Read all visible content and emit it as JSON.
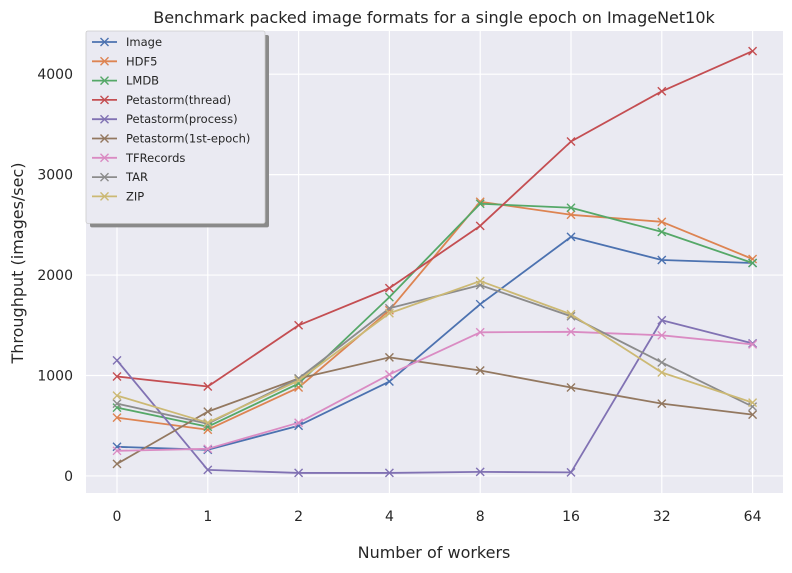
{
  "chart_data": {
    "type": "line",
    "title": "Benchmark packed image formats for a single epoch on ImageNet10k",
    "xlabel": "Number of workers",
    "ylabel": "Throughput (images/sec)",
    "categories": [
      "0",
      "1",
      "2",
      "4",
      "8",
      "16",
      "32",
      "64"
    ],
    "ylim": [
      -170,
      4430
    ],
    "yticks": [
      0,
      1000,
      2000,
      3000,
      4000
    ],
    "grid": true,
    "legend_position": "top-left",
    "marker": "x",
    "series": [
      {
        "name": "Image",
        "color": "#4c72b0",
        "values": [
          290,
          260,
          500,
          940,
          1710,
          2380,
          2150,
          2120
        ]
      },
      {
        "name": "HDF5",
        "color": "#dd8452",
        "values": [
          580,
          460,
          880,
          1650,
          2730,
          2600,
          2530,
          2160
        ]
      },
      {
        "name": "LMDB",
        "color": "#55a868",
        "values": [
          680,
          490,
          920,
          1780,
          2710,
          2670,
          2430,
          2120
        ]
      },
      {
        "name": "Petastorm(thread)",
        "color": "#c44e52",
        "values": [
          990,
          890,
          1500,
          1870,
          2490,
          3330,
          3830,
          4230
        ]
      },
      {
        "name": "Petastorm(process)",
        "color": "#8172b3",
        "values": [
          1150,
          60,
          30,
          30,
          40,
          35,
          1550,
          1320
        ]
      },
      {
        "name": "Petastorm(1st-epoch)",
        "color": "#937860",
        "values": [
          120,
          640,
          970,
          1180,
          1050,
          880,
          720,
          610
        ]
      },
      {
        "name": "TFRecords",
        "color": "#da8bc3",
        "values": [
          250,
          270,
          530,
          1010,
          1430,
          1435,
          1400,
          1310
        ]
      },
      {
        "name": "TAR",
        "color": "#8c8c8c",
        "values": [
          720,
          520,
          970,
          1670,
          1900,
          1590,
          1130,
          690
        ]
      },
      {
        "name": "ZIP",
        "color": "#ccb974",
        "values": [
          800,
          530,
          950,
          1620,
          1940,
          1610,
          1030,
          730
        ]
      }
    ]
  }
}
